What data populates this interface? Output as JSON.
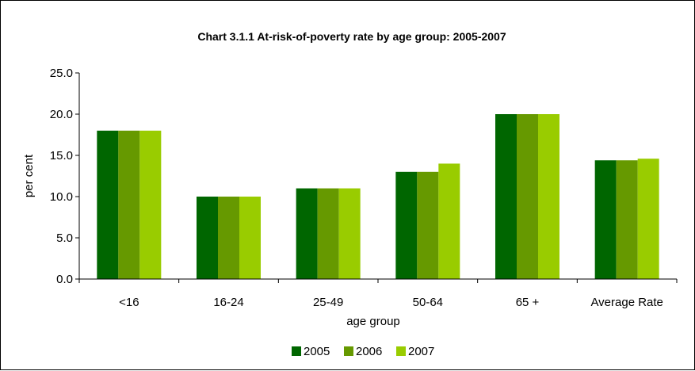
{
  "chart_data": {
    "type": "bar",
    "title": "Chart 3.1.1  At-risk-of-poverty rate by age group: 2005-2007",
    "xlabel": "age group",
    "ylabel": "per cent",
    "ylim": [
      0,
      25
    ],
    "yticks": [
      "0.0",
      "5.0",
      "10.0",
      "15.0",
      "20.0",
      "25.0"
    ],
    "categories": [
      "<16",
      "16-24",
      "25-49",
      "50-64",
      "65 +",
      "Average Rate"
    ],
    "series": [
      {
        "name": "2005",
        "color": "#006600",
        "values": [
          18.0,
          10.0,
          11.0,
          13.0,
          20.0,
          14.4
        ]
      },
      {
        "name": "2006",
        "color": "#669900",
        "values": [
          18.0,
          10.0,
          11.0,
          13.0,
          20.0,
          14.4
        ]
      },
      {
        "name": "2007",
        "color": "#99CC00",
        "values": [
          18.0,
          10.0,
          11.0,
          14.0,
          20.0,
          14.6
        ]
      }
    ],
    "legend_position": "bottom",
    "grid": false
  }
}
